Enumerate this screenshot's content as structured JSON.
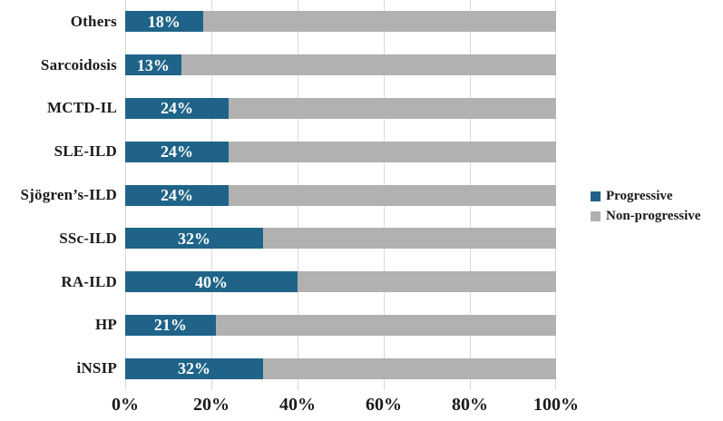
{
  "chart_data": {
    "type": "bar",
    "orientation": "horizontal",
    "stacked": true,
    "title": "",
    "xlabel": "",
    "ylabel": "",
    "categories": [
      "Others",
      "Sarcoidosis",
      "MCTD-IL",
      "SLE-ILD",
      "Sjögren’s-ILD",
      "SSc-ILD",
      "RA-ILD",
      "HP",
      "iNSIP"
    ],
    "series": [
      {
        "name": "Progressive",
        "color": "#1f6488",
        "values": [
          18,
          13,
          24,
          24,
          24,
          32,
          40,
          21,
          32
        ]
      },
      {
        "name": "Non-progressive",
        "color": "#b1b1b1",
        "values": [
          82,
          87,
          76,
          76,
          76,
          68,
          60,
          79,
          68
        ]
      }
    ],
    "bar_labels": [
      "18%",
      "13%",
      "24%",
      "24%",
      "24%",
      "32%",
      "40%",
      "21%",
      "32%"
    ],
    "x_axis": {
      "range": [
        0,
        100
      ],
      "ticks": [
        "0%",
        "20%",
        "40%",
        "60%",
        "80%",
        "100%"
      ]
    },
    "grid": "vertical-only",
    "gridline_color": "#d9d9d9",
    "legend": {
      "position": "right",
      "entries": [
        {
          "label": "Progressive",
          "color": "#1f6488"
        },
        {
          "label": "Non-progressive",
          "color": "#b1b1b1"
        }
      ]
    }
  }
}
